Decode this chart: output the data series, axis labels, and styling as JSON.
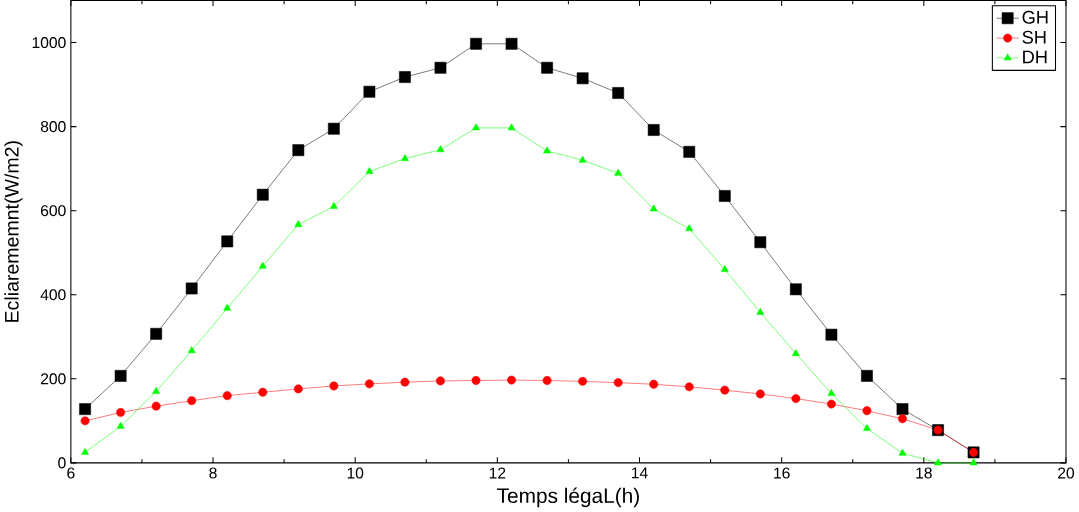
{
  "chart_data": {
    "type": "line",
    "xlabel": "Temps légaL(h)",
    "ylabel": "Ecliarememnt(W/m2)",
    "x": [
      6.2,
      6.7,
      7.2,
      7.7,
      8.2,
      8.7,
      9.2,
      9.7,
      10.2,
      10.7,
      11.2,
      11.7,
      12.2,
      12.7,
      13.2,
      13.7,
      14.2,
      14.7,
      15.2,
      15.7,
      16.2,
      16.7,
      17.2,
      17.7,
      18.2,
      18.7
    ],
    "series": [
      {
        "name": "GH",
        "color": "#000000",
        "marker": "square",
        "values": [
          128,
          207,
          307,
          415,
          527,
          638,
          744,
          795,
          883,
          918,
          940,
          997,
          997,
          940,
          915,
          880,
          792,
          740,
          635,
          525,
          413,
          305,
          207,
          128,
          78,
          25
        ]
      },
      {
        "name": "SH",
        "color": "#ff0000",
        "marker": "circle",
        "values": [
          100,
          120,
          135,
          148,
          160,
          168,
          176,
          183,
          188,
          192,
          195,
          196,
          197,
          196,
          194,
          191,
          187,
          181,
          173,
          164,
          153,
          140,
          124,
          105,
          78,
          25
        ]
      },
      {
        "name": "DH",
        "color": "#00ff00",
        "marker": "triangle",
        "values": [
          25,
          87,
          170,
          267,
          368,
          468,
          567,
          610,
          693,
          724,
          745,
          797,
          797,
          742,
          720,
          689,
          604,
          557,
          460,
          358,
          260,
          165,
          82,
          23,
          0,
          0
        ]
      }
    ],
    "xlim": [
      6,
      20
    ],
    "ylim": [
      0,
      1100
    ],
    "xticks": [
      6,
      8,
      10,
      12,
      14,
      16,
      18,
      20
    ],
    "yticks": [
      0,
      200,
      400,
      600,
      800,
      1000
    ],
    "grid": false,
    "legend": "top right",
    "line_style": "solid"
  }
}
